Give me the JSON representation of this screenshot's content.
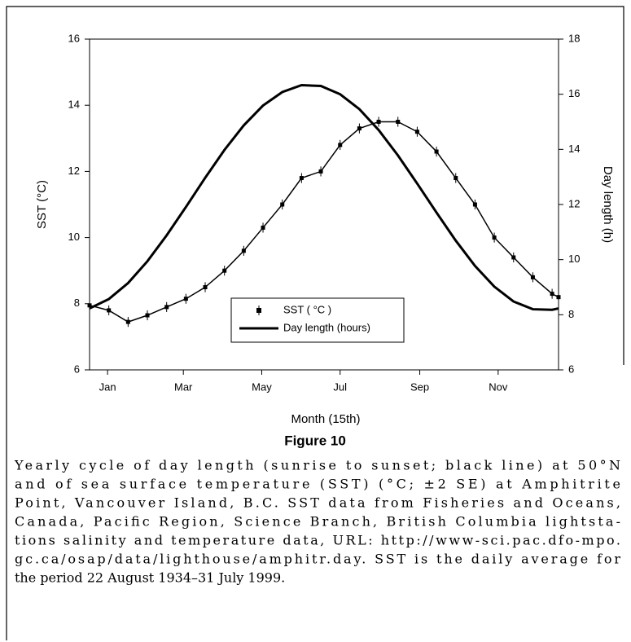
{
  "chart_data": {
    "type": "line",
    "xlabel": "Month (15th)",
    "ylabel": "SST (°C)",
    "y2label": "Day length (h)",
    "x": [
      1,
      16,
      31,
      46,
      61,
      76,
      91,
      106,
      121,
      136,
      151,
      166,
      181,
      196,
      211,
      226,
      241,
      256,
      271,
      286,
      301,
      316,
      331,
      346,
      361,
      366
    ],
    "xlim": [
      1,
      366
    ],
    "xticks": [
      {
        "value": 15,
        "label": "Jan"
      },
      {
        "value": 74,
        "label": "Mar"
      },
      {
        "value": 135,
        "label": "May"
      },
      {
        "value": 196,
        "label": "Jul"
      },
      {
        "value": 258,
        "label": "Sep"
      },
      {
        "value": 319,
        "label": "Nov"
      }
    ],
    "ylim": [
      6,
      16
    ],
    "yticks": [
      6,
      8,
      10,
      12,
      14,
      16
    ],
    "y2lim": [
      6,
      18
    ],
    "y2ticks": [
      6,
      8,
      10,
      12,
      14,
      16,
      18
    ],
    "legend": "bottom center",
    "series": [
      {
        "name": "SST ( °C )",
        "color": "#000000",
        "values": [
          7.95,
          7.8,
          7.45,
          7.65,
          7.9,
          8.15,
          8.5,
          9.0,
          9.6,
          10.3,
          11.0,
          11.8,
          12.0,
          12.8,
          13.3,
          13.5,
          13.5,
          13.2,
          12.6,
          11.8,
          11.0,
          10.0,
          9.4,
          8.8,
          8.3,
          8.2
        ],
        "errors": [
          0.15,
          0.15,
          0.15,
          0.15,
          0.15,
          0.15,
          0.15,
          0.15,
          0.15,
          0.15,
          0.15,
          0.15,
          0.15,
          0.15,
          0.15,
          0.15,
          0.15,
          0.15,
          0.15,
          0.15,
          0.15,
          0.15,
          0.15,
          0.15,
          0.15,
          0.15
        ]
      },
      {
        "name": "Day length (hours)",
        "color": "#000000",
        "axis": "y2",
        "values": [
          8.23,
          8.57,
          9.15,
          9.94,
          10.88,
          11.91,
          12.97,
          13.98,
          14.87,
          15.59,
          16.08,
          16.33,
          16.3,
          16.0,
          15.46,
          14.7,
          13.78,
          12.76,
          11.71,
          10.69,
          9.77,
          9.02,
          8.48,
          8.2,
          8.18,
          8.23
        ]
      }
    ]
  },
  "figure": {
    "label": "Figure 10",
    "caption_lines": [
      "Yearly cycle of day length (sunrise to sunset; black line) at 50°N",
      "and of sea surface temperature (SST) (°C; ±2 SE) at Amphitrite",
      "Point, Vancouver Island, B.C. SST data from Fisheries and Oceans,",
      "Canada, Pacific Region, Science Branch, British Columbia lightsta-",
      "tions salinity and temperature data, URL: http://www-sci.pac.dfo-mpo.",
      "gc.ca/osap/data/lighthouse/amphitr.day. SST is the daily average for",
      "the period 22 August 1934–31 July 1999."
    ]
  }
}
